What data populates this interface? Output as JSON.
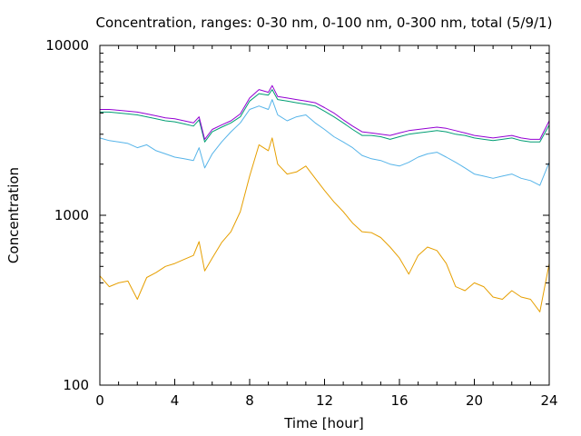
{
  "chart_data": {
    "type": "line",
    "title": "Concentration, ranges: 0-30 nm, 0-100 nm, 0-300 nm, total (5/9/1)",
    "xlabel": "Time [hour]",
    "ylabel": "Concentration",
    "xlim": [
      0,
      24
    ],
    "ylim": [
      100,
      10000
    ],
    "yscale": "log",
    "grid": false,
    "x_ticks": [
      "0",
      "4",
      "8",
      "12",
      "16",
      "20",
      "24"
    ],
    "y_ticks": [
      "100",
      "1000",
      "10000"
    ],
    "colors": [
      "#e69f00",
      "#56b4e9",
      "#009e73",
      "#9400d3"
    ],
    "x": [
      0,
      0.5,
      1,
      1.5,
      2,
      2.5,
      3,
      3.5,
      4,
      4.5,
      5,
      5.3,
      5.6,
      6,
      6.5,
      7,
      7.5,
      8,
      8.5,
      9,
      9.2,
      9.5,
      10,
      10.5,
      11,
      11.5,
      12,
      12.5,
      13,
      13.5,
      14,
      14.5,
      15,
      15.5,
      16,
      16.5,
      17,
      17.5,
      18,
      18.5,
      19,
      19.5,
      20,
      20.5,
      21,
      21.5,
      22,
      22.5,
      23,
      23.5,
      24
    ],
    "series": [
      {
        "values": [
          440,
          380,
          400,
          410,
          320,
          430,
          460,
          500,
          520,
          550,
          580,
          700,
          470,
          560,
          690,
          800,
          1050,
          1700,
          2600,
          2400,
          2850,
          2000,
          1750,
          1800,
          1950,
          1650,
          1400,
          1200,
          1050,
          900,
          800,
          790,
          740,
          650,
          560,
          450,
          580,
          650,
          620,
          520,
          380,
          360,
          400,
          380,
          330,
          320,
          360,
          330,
          320,
          270,
          520
        ]
      },
      {
        "values": [
          2850,
          2750,
          2700,
          2650,
          2500,
          2600,
          2400,
          2300,
          2200,
          2150,
          2100,
          2500,
          1900,
          2300,
          2700,
          3100,
          3500,
          4200,
          4400,
          4200,
          4800,
          3900,
          3600,
          3800,
          3900,
          3500,
          3200,
          2900,
          2700,
          2500,
          2250,
          2150,
          2100,
          2000,
          1950,
          2050,
          2200,
          2300,
          2350,
          2200,
          2050,
          1900,
          1750,
          1700,
          1650,
          1700,
          1750,
          1650,
          1600,
          1500,
          2050
        ]
      },
      {
        "values": [
          4050,
          4050,
          4000,
          3950,
          3900,
          3800,
          3700,
          3600,
          3550,
          3450,
          3350,
          3650,
          2700,
          3100,
          3300,
          3500,
          3800,
          4700,
          5200,
          5100,
          5500,
          4800,
          4700,
          4600,
          4500,
          4400,
          4100,
          3800,
          3500,
          3200,
          2950,
          2950,
          2900,
          2800,
          2900,
          3000,
          3050,
          3100,
          3150,
          3100,
          3000,
          2950,
          2850,
          2800,
          2750,
          2800,
          2850,
          2750,
          2700,
          2700,
          3400
        ]
      },
      {
        "values": [
          4200,
          4200,
          4150,
          4100,
          4050,
          3950,
          3850,
          3750,
          3700,
          3600,
          3500,
          3800,
          2800,
          3200,
          3400,
          3600,
          3950,
          4900,
          5500,
          5300,
          5800,
          5000,
          4900,
          4800,
          4700,
          4600,
          4300,
          4000,
          3650,
          3350,
          3100,
          3050,
          3000,
          2950,
          3050,
          3150,
          3200,
          3250,
          3300,
          3250,
          3150,
          3050,
          2950,
          2900,
          2850,
          2900,
          2950,
          2850,
          2800,
          2800,
          3600
        ]
      }
    ]
  }
}
